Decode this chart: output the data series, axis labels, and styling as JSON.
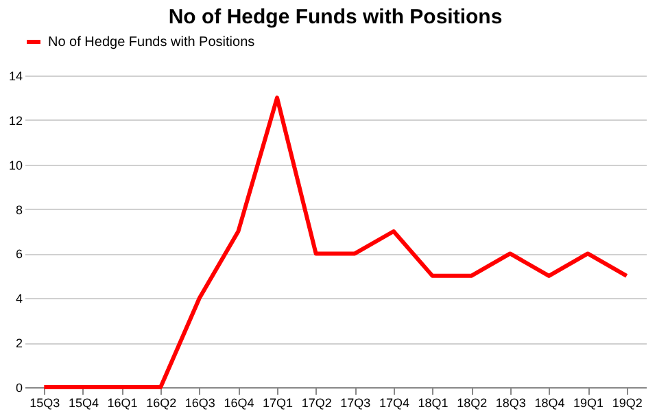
{
  "chart_data": {
    "type": "line",
    "title": "No of Hedge Funds with Positions",
    "categories": [
      "15Q3",
      "15Q4",
      "16Q1",
      "16Q2",
      "16Q3",
      "16Q4",
      "17Q1",
      "17Q2",
      "17Q3",
      "17Q4",
      "18Q1",
      "18Q2",
      "18Q3",
      "18Q4",
      "19Q1",
      "19Q2"
    ],
    "series": [
      {
        "name": "No of Hedge Funds with Positions",
        "color": "#ff0000",
        "values": [
          0,
          0,
          0,
          0,
          4,
          7,
          13,
          6,
          6,
          7,
          5,
          5,
          6,
          5,
          6,
          5
        ]
      }
    ],
    "ylim": [
      0,
      14
    ],
    "yticks": [
      0,
      2,
      4,
      6,
      8,
      10,
      12,
      14
    ],
    "grid": "y",
    "legend": "top",
    "marker": "none",
    "line_style": "solid"
  }
}
